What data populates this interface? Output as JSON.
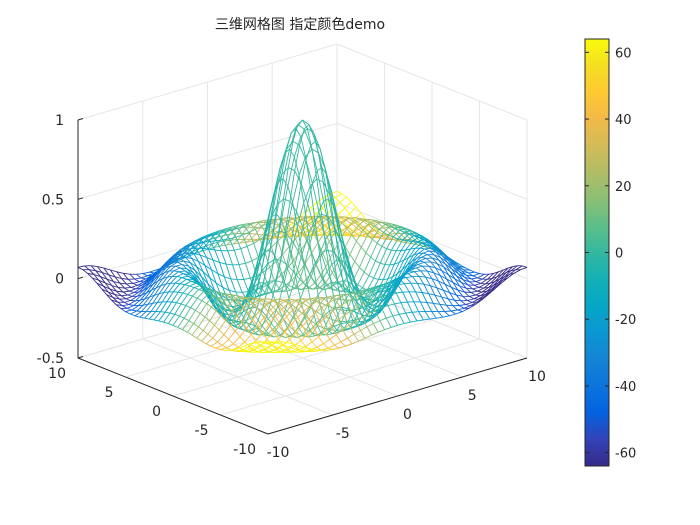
{
  "figure": {
    "title": "三维网格图 指定颜色demo"
  },
  "chart_data": {
    "type": "mesh3d",
    "title": "三维网格图 指定颜色demo",
    "x": {
      "min": -10,
      "max": 10,
      "step": 0.5,
      "ticks": [
        -10,
        -5,
        0,
        5,
        10
      ],
      "tick_labels": [
        "-10",
        "-5",
        "0",
        "5",
        "10"
      ]
    },
    "y": {
      "min": -10,
      "max": 10,
      "step": 0.5,
      "ticks": [
        -10,
        -5,
        0,
        5,
        10
      ],
      "tick_labels": [
        "-10",
        "-5",
        "0",
        "5",
        "10"
      ]
    },
    "z": {
      "min": -0.5,
      "max": 1,
      "ticks": [
        -0.5,
        0,
        0.5,
        1
      ],
      "tick_labels": [
        "-0.5",
        "0",
        "0.5",
        "1"
      ]
    },
    "surface": "z = sin(r) / r, r = sqrt(x^2 + y^2)",
    "color_data": "C = x .* y",
    "colormap": "parula",
    "colorbar": {
      "min": -64,
      "max": 64,
      "ticks": [
        -60,
        -40,
        -20,
        0,
        20,
        40,
        60
      ],
      "tick_labels": [
        "-60",
        "-40",
        "-20",
        "0",
        "20",
        "40",
        "60"
      ],
      "location": "right"
    },
    "grid": true,
    "view": {
      "azimuth": -37.5,
      "elevation": 30
    }
  }
}
